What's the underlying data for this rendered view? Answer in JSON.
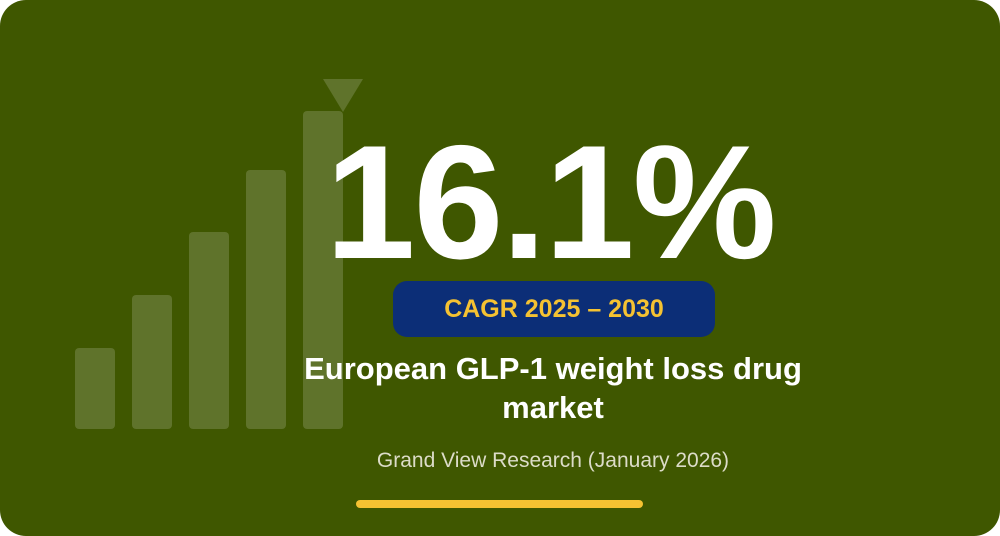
{
  "colors": {
    "background": "#3f5700",
    "accent": "#f5c232",
    "pill_background": "#0c2e77",
    "text": "#ffffff"
  },
  "stat": {
    "value": "16.1%",
    "badge": "CAGR 2025 – 2030",
    "subject": "European GLP-1 weight loss drug market",
    "source": "Grand View Research (January 2026)"
  },
  "decoration": {
    "icon": "rising-bars-with-arrow-icon",
    "bar_count": 5
  }
}
